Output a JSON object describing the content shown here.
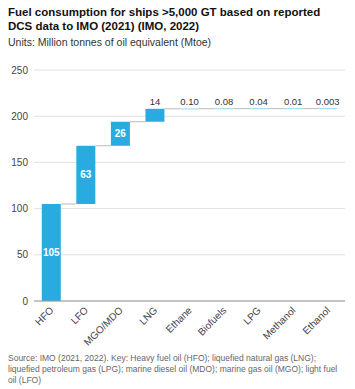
{
  "chart_data": {
    "type": "waterfall",
    "title": "Fuel consumption for ships >5,000 GT based on reported DCS data to IMO (2021) (IMO, 2022)",
    "subtitle": "Units: Million tonnes of oil equivalent (Mtoe)",
    "annotations": [
      "Source: IMO (2021, 2022). Key: Heavy fuel oil (HFO); liquefied natural gas (LNG); liquefied petroleum gas (LPG); marine diesel oil (MDO); marine gas oil (MGO); light fuel oil (LFO)"
    ],
    "categories": [
      "HFO",
      "LFO",
      "MGO/MDO",
      "LNG",
      "Ethane",
      "Biofuels",
      "LPG",
      "Methanol",
      "Ethanol"
    ],
    "values": [
      105,
      63,
      26,
      14,
      0.1,
      0.08,
      0.04,
      0.01,
      0.003
    ],
    "value_labels": [
      "105",
      "63",
      "26",
      "14",
      "0.10",
      "0.08",
      "0.04",
      "0.01",
      "0.003"
    ],
    "data_labels": true,
    "color": "#29ABE2",
    "ylim": [
      0,
      250
    ],
    "yticks": [
      0,
      50,
      100,
      150,
      200,
      250
    ],
    "grid": true
  }
}
